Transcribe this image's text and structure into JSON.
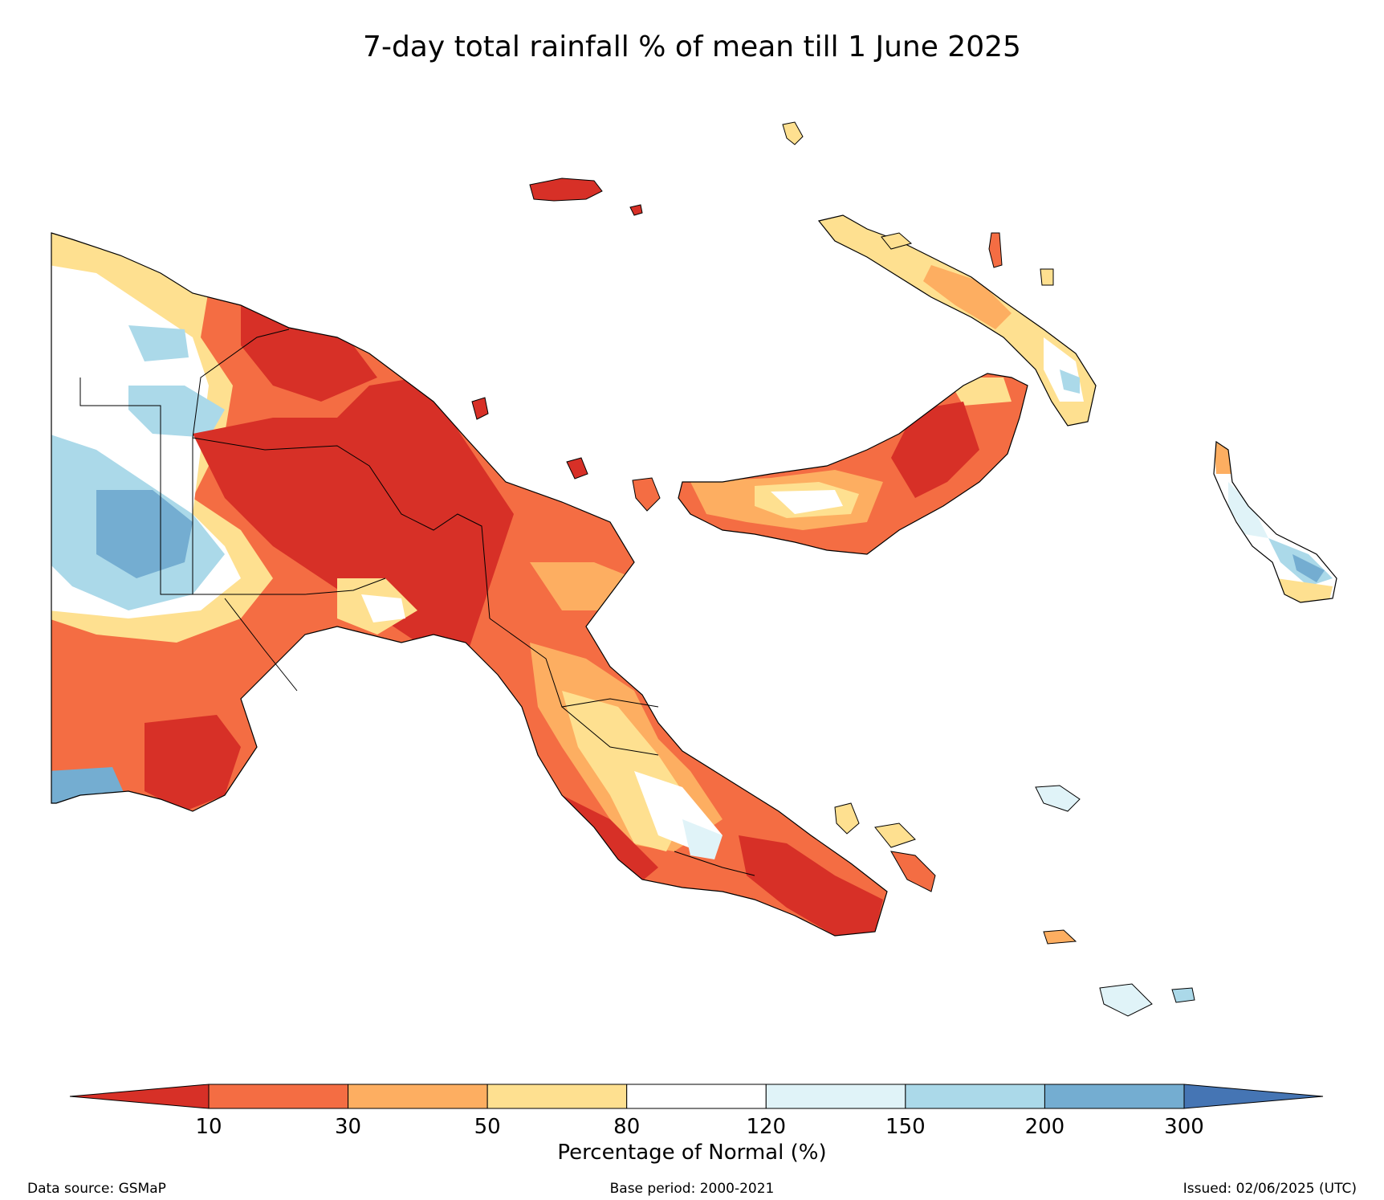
{
  "title": "7-day total rainfall % of mean till 1 June 2025",
  "colorbar": {
    "label": "Percentage of Normal (%)",
    "ticks": [
      "10",
      "30",
      "50",
      "80",
      "120",
      "150",
      "200",
      "300"
    ],
    "under_color": "#d73027",
    "over_color": "#4575b4",
    "bins": [
      {
        "range": "10-30",
        "color": "#f46d43"
      },
      {
        "range": "30-50",
        "color": "#fdae61"
      },
      {
        "range": "50-80",
        "color": "#fee090"
      },
      {
        "range": "80-120",
        "color": "#ffffff"
      },
      {
        "range": "120-150",
        "color": "#e0f3f8"
      },
      {
        "range": "150-200",
        "color": "#abd9e9"
      },
      {
        "range": "200-300",
        "color": "#74add1"
      }
    ]
  },
  "footer": {
    "source": "Data source: GSMaP",
    "base_period": "Base period: 2000-2021",
    "issued": "Issued: 02/06/2025 (UTC)"
  }
}
